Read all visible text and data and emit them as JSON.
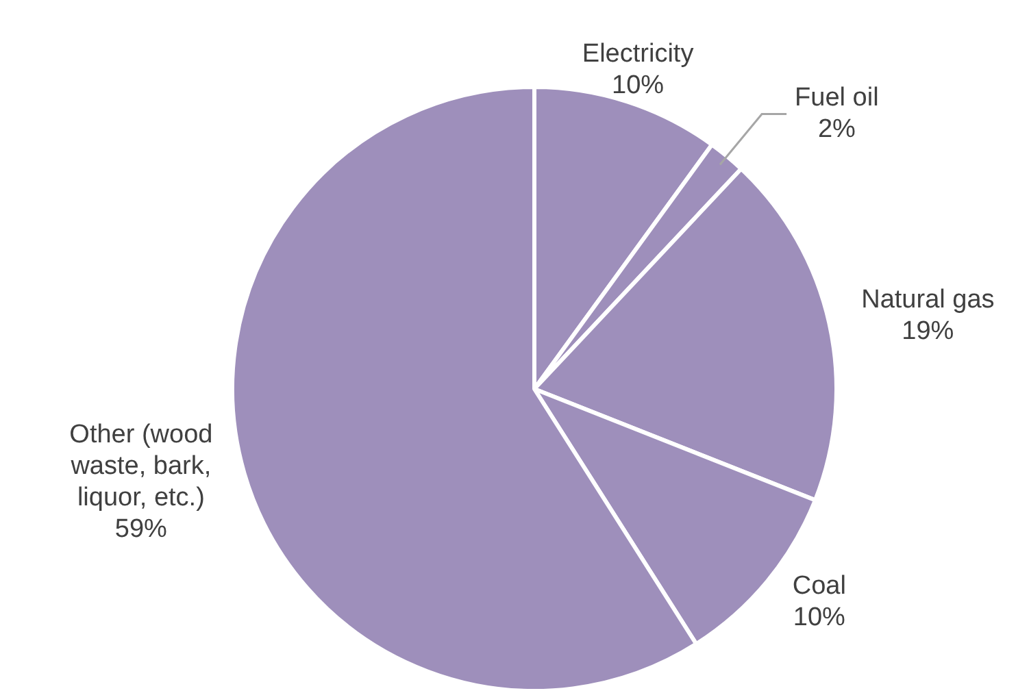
{
  "chart_data": {
    "type": "pie",
    "categories": [
      "Electricity",
      "Fuel oil",
      "Natural gas",
      "Coal",
      "Other (wood waste, bark, liquor, etc.)"
    ],
    "values": [
      10,
      2,
      19,
      10,
      59
    ],
    "colors": [
      "#9e8fbb",
      "#9e8fbb",
      "#9e8fbb",
      "#9e8fbb",
      "#9e8fbb"
    ],
    "value_labels": [
      "10%",
      "2%",
      "19%",
      "10%",
      "59%"
    ]
  }
}
